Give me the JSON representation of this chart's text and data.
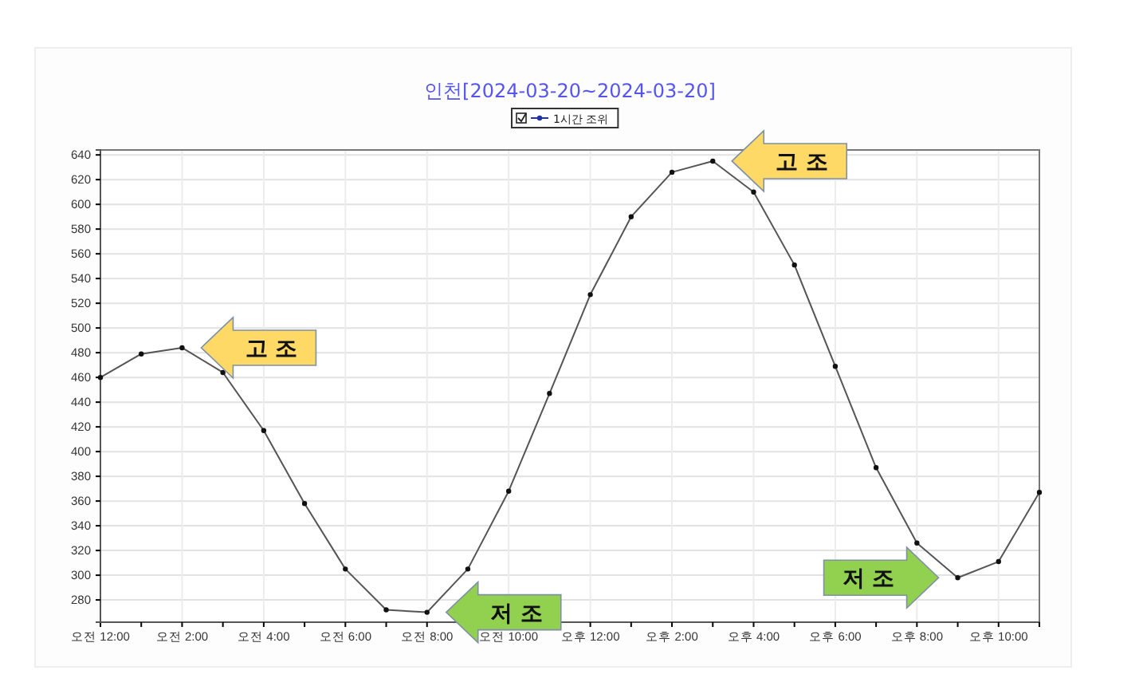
{
  "chart_data": {
    "type": "line",
    "title": "인천[2024-03-20~2024-03-20]",
    "categories": [
      "오전 12:00",
      null,
      "오전 2:00",
      null,
      "오전 4:00",
      null,
      "오전 6:00",
      null,
      "오전 8:00",
      null,
      "오전 10:00",
      null,
      "오후 12:00",
      null,
      "오후 2:00",
      null,
      "오후 4:00",
      null,
      "오후 6:00",
      null,
      "오후 8:00",
      null,
      "오후 10:00",
      null
    ],
    "series": [
      {
        "name": "1시간 조위",
        "color": "#555555",
        "values": [
          460,
          479,
          484,
          464,
          417,
          358,
          305,
          272,
          270,
          305,
          368,
          447,
          527,
          590,
          626,
          635,
          610,
          551,
          469,
          387,
          326,
          298,
          311,
          367
        ]
      }
    ],
    "ylim": [
      262,
      644
    ],
    "yticks": [
      280,
      300,
      320,
      340,
      360,
      380,
      400,
      420,
      440,
      460,
      480,
      500,
      520,
      540,
      560,
      580,
      600,
      620,
      640
    ],
    "grid": true,
    "legend": "top",
    "marker": "circle",
    "line_style": "solid",
    "annotations": [
      "고 조",
      "고 조",
      "저 조",
      "저 조"
    ]
  }
}
